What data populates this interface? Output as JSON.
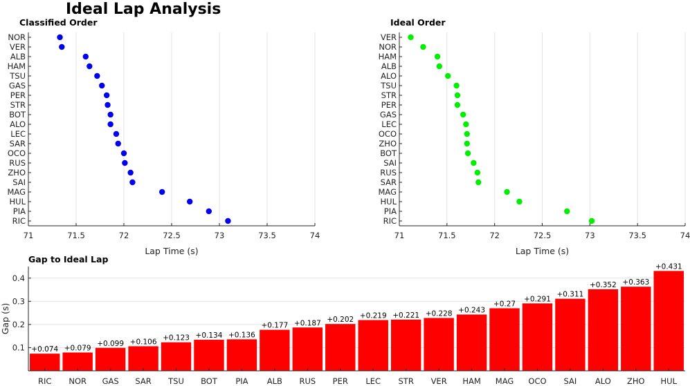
{
  "page": {
    "title": "Ideal Lap Analysis"
  },
  "chart_data": [
    {
      "type": "scatter",
      "title": "Classified Order",
      "xlabel": "Lap Time (s)",
      "ylabel": "",
      "xlim": [
        71,
        74
      ],
      "xticks": [
        71,
        71.5,
        72,
        72.5,
        73,
        73.5,
        74
      ],
      "grid": true,
      "marker_color": "#0000ee",
      "categories": [
        "NOR",
        "VER",
        "ALB",
        "HAM",
        "TSU",
        "GAS",
        "PER",
        "STR",
        "BOT",
        "ALO",
        "LEC",
        "SAR",
        "OCO",
        "RUS",
        "ZHO",
        "SAI",
        "MAG",
        "HUL",
        "PIA",
        "RIC"
      ],
      "values": [
        71.33,
        71.35,
        71.6,
        71.64,
        71.72,
        71.77,
        71.82,
        71.83,
        71.86,
        71.86,
        71.92,
        71.94,
        72.0,
        72.01,
        72.07,
        72.09,
        72.4,
        72.69,
        72.89,
        73.09
      ]
    },
    {
      "type": "scatter",
      "title": "Ideal Order",
      "xlabel": "Lap Time (s)",
      "ylabel": "",
      "xlim": [
        71,
        74
      ],
      "xticks": [
        71,
        71.5,
        72,
        72.5,
        73,
        73.5,
        74
      ],
      "grid": true,
      "marker_color": "#00ee00",
      "categories": [
        "VER",
        "NOR",
        "HAM",
        "ALB",
        "ALO",
        "TSU",
        "STR",
        "PER",
        "GAS",
        "LEC",
        "OCO",
        "ZHO",
        "BOT",
        "SAI",
        "RUS",
        "SAR",
        "MAG",
        "HUL",
        "PIA",
        "RIC"
      ],
      "values": [
        71.12,
        71.25,
        71.4,
        71.42,
        71.51,
        71.6,
        71.61,
        71.61,
        71.67,
        71.7,
        71.71,
        71.71,
        71.72,
        71.78,
        71.82,
        71.83,
        72.13,
        72.26,
        72.76,
        73.02
      ]
    },
    {
      "type": "bar",
      "title": "Gap to Ideal Lap",
      "xlabel": "",
      "ylabel": "Gap (s)",
      "ylim": [
        0,
        0.45
      ],
      "yticks": [
        0.1,
        0.2,
        0.3,
        0.4
      ],
      "grid": true,
      "bar_color": "#ff0000",
      "categories": [
        "RIC",
        "NOR",
        "GAS",
        "SAR",
        "TSU",
        "BOT",
        "PIA",
        "ALB",
        "RUS",
        "PER",
        "LEC",
        "STR",
        "VER",
        "HAM",
        "MAG",
        "OCO",
        "SAI",
        "ALO",
        "ZHO",
        "HUL"
      ],
      "values": [
        0.074,
        0.079,
        0.099,
        0.106,
        0.123,
        0.134,
        0.136,
        0.177,
        0.187,
        0.202,
        0.219,
        0.221,
        0.228,
        0.243,
        0.27,
        0.291,
        0.311,
        0.352,
        0.363,
        0.431
      ],
      "value_labels": [
        "+0.074",
        "+0.079",
        "+0.099",
        "+0.106",
        "+0.123",
        "+0.134",
        "+0.136",
        "+0.177",
        "+0.187",
        "+0.202",
        "+0.219",
        "+0.221",
        "+0.228",
        "+0.243",
        "+0.27",
        "+0.291",
        "+0.311",
        "+0.352",
        "+0.363",
        "+0.431"
      ]
    }
  ]
}
